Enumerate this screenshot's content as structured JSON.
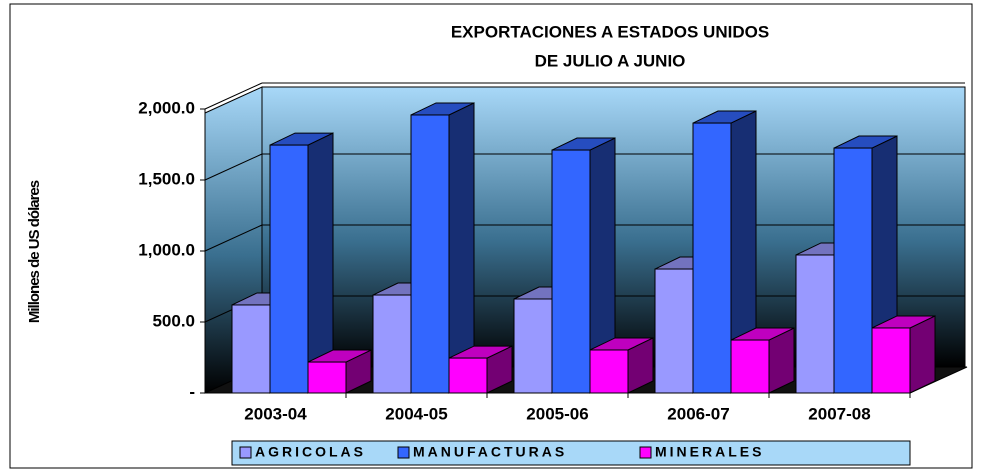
{
  "chart_data": {
    "type": "bar3d",
    "title": [
      "EXPORTACIONES A ESTADOS UNIDOS",
      "DE  JULIO A JUNIO"
    ],
    "y_label": "Millones de US dólares",
    "categories": [
      "2003-04",
      "2004-05",
      "2005-06",
      "2006-07",
      "2007-08"
    ],
    "series": [
      {
        "name": "AGRICOLAS",
        "color": "#9999ff",
        "values": [
          620,
          690,
          662,
          873,
          972
        ]
      },
      {
        "name": "MANUFACTURAS",
        "color": "#3366ff",
        "values": [
          1746,
          1958,
          1711,
          1901,
          1725
        ]
      },
      {
        "name": "MINERALES",
        "color": "#ff00ff",
        "values": [
          218,
          246,
          303,
          373,
          458
        ]
      }
    ],
    "ylim": [
      0,
      2000
    ],
    "yticks": [
      {
        "value": 0,
        "label": "-"
      },
      {
        "value": 500,
        "label": "500.0"
      },
      {
        "value": 1000,
        "label": "1,000.0"
      },
      {
        "value": 1500,
        "label": "1,500.0"
      },
      {
        "value": 2000,
        "label": "2,000.0"
      }
    ],
    "grid": true,
    "legend": "bottom"
  }
}
